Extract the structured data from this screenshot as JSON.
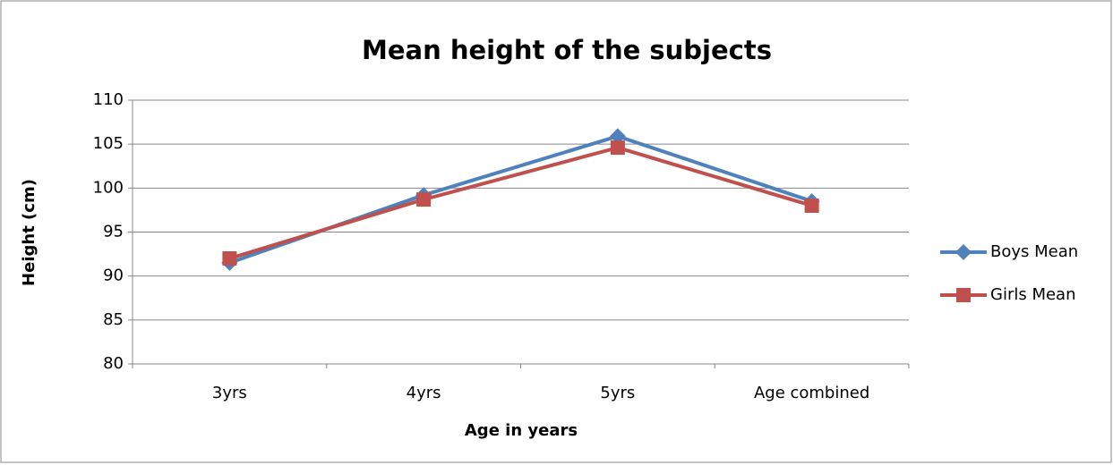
{
  "chart_data": {
    "type": "line",
    "title": "Mean height of the subjects",
    "x_label": "Age in years",
    "y_label": "Height (cm)",
    "categories": [
      "3yrs",
      "4yrs",
      "5yrs",
      "Age combined"
    ],
    "series": [
      {
        "name": "Boys Mean",
        "color": "#4f81bd",
        "marker": "diamond",
        "values": [
          91.5,
          99.2,
          105.9,
          98.5
        ]
      },
      {
        "name": "Girls Mean",
        "color": "#c0504d",
        "marker": "square",
        "values": [
          92.0,
          98.7,
          104.6,
          98.0
        ]
      }
    ],
    "ylim": [
      80,
      110
    ],
    "yticks": [
      80,
      85,
      90,
      95,
      100,
      105,
      110
    ],
    "grid": true,
    "legend": "right"
  }
}
